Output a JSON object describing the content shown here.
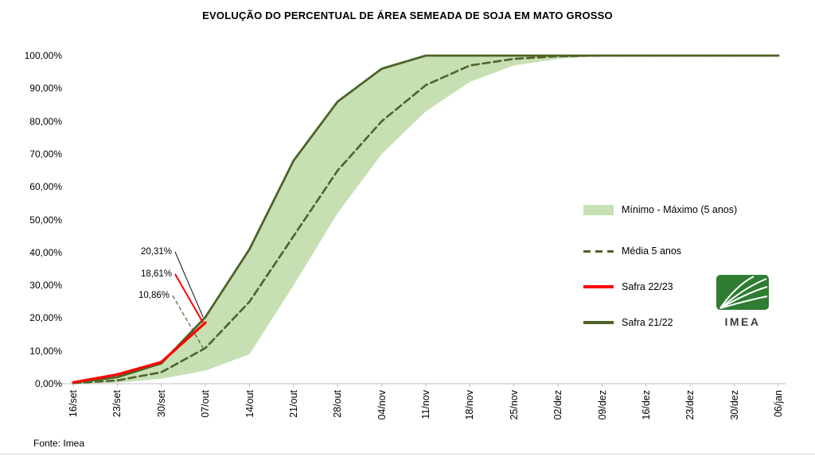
{
  "title": "EVOLUÇÃO DO PERCENTUAL DE ÁREA SEMEADA DE SOJA EM MATO GROSSO",
  "source": "Fonte: Imea",
  "logo": {
    "text": "IMEA"
  },
  "colors": {
    "band": "#c6e0b4",
    "olive": "#4f6228",
    "red": "#ff0000",
    "axis": "#bfbfbf",
    "text": "#000000",
    "logo_green": "#2e7d32",
    "logo_text": "#3d3d3d"
  },
  "legend": {
    "items": [
      {
        "label": "Mínimo - Máximo (5 anos)",
        "swatch": "band"
      },
      {
        "label": "Média 5 anos",
        "swatch": "dashed"
      },
      {
        "label": "Safra 22/23",
        "swatch": "red"
      },
      {
        "label": "Safra 21/22",
        "swatch": "olive"
      }
    ]
  },
  "chart_data": {
    "type": "area",
    "title": "EVOLUÇÃO DO PERCENTUAL DE ÁREA SEMEADA DE SOJA EM MATO GROSSO",
    "xlabel": "",
    "ylabel": "",
    "ylim": [
      0,
      100
    ],
    "grid": false,
    "legend_position": "right",
    "y_ticks": [
      {
        "value": 0,
        "label": "0,00%"
      },
      {
        "value": 10,
        "label": "10,00%"
      },
      {
        "value": 20,
        "label": "20,00%"
      },
      {
        "value": 30,
        "label": "30,00%"
      },
      {
        "value": 40,
        "label": "40,00%"
      },
      {
        "value": 50,
        "label": "50,00%"
      },
      {
        "value": 60,
        "label": "60,00%"
      },
      {
        "value": 70,
        "label": "70,00%"
      },
      {
        "value": 80,
        "label": "80,00%"
      },
      {
        "value": 90,
        "label": "90,00%"
      },
      {
        "value": 100,
        "label": "100,00%"
      }
    ],
    "categories": [
      "16/set",
      "23/set",
      "30/set",
      "07/out",
      "14/out",
      "21/out",
      "28/out",
      "04/nov",
      "11/nov",
      "18/nov",
      "25/nov",
      "02/dez",
      "09/dez",
      "16/dez",
      "23/dez",
      "30/dez",
      "06/jan"
    ],
    "series": [
      {
        "id": "minimo-maximo-5-anos",
        "name": "Mínimo - Máximo (5 anos)",
        "type": "band",
        "color": "#c6e0b4",
        "min": [
          0,
          0.3,
          1.5,
          4,
          9,
          30,
          52,
          70,
          83,
          92,
          97,
          99,
          100,
          100,
          100,
          100,
          100
        ],
        "max": [
          0.3,
          2,
          6.2,
          20.31,
          41,
          68,
          86,
          96,
          100,
          100,
          100,
          100,
          100,
          100,
          100,
          100,
          100
        ]
      },
      {
        "id": "media-5-anos",
        "name": "Média 5 anos",
        "type": "line",
        "style": "dashed",
        "dash": "9 5",
        "width": 2.6,
        "color": "#4f6228",
        "values": [
          0.2,
          1,
          3.5,
          10.86,
          25,
          45,
          65,
          80,
          91,
          97,
          99,
          99.8,
          100,
          100,
          100,
          100,
          100
        ]
      },
      {
        "id": "safra-21-22",
        "name": "Safra 21/22",
        "type": "line",
        "width": 2.8,
        "color": "#4f6228",
        "values": [
          0.3,
          2,
          6.2,
          20.31,
          41,
          68,
          86,
          96,
          100,
          100,
          100,
          100,
          100,
          100,
          100,
          100,
          100
        ]
      },
      {
        "id": "safra-22-23",
        "name": "Safra 22/23",
        "type": "line",
        "width": 3.2,
        "color": "#ff0000",
        "values": [
          0.4,
          2.8,
          6.6,
          18.61,
          null,
          null,
          null,
          null,
          null,
          null,
          null,
          null,
          null,
          null,
          null,
          null,
          null
        ]
      }
    ],
    "annotations": [
      {
        "text": "20,31%",
        "series_id": "safra-21-22",
        "category": "07/out",
        "value": 20.31,
        "line_color": "#333333",
        "dashed": false,
        "line_width": 1.2
      },
      {
        "text": "18,61%",
        "series_id": "safra-22-23",
        "category": "07/out",
        "value": 18.61,
        "line_color": "#ff0000",
        "dashed": false,
        "line_width": 2
      },
      {
        "text": "10,86%",
        "series_id": "media-5-anos",
        "category": "07/out",
        "value": 10.86,
        "line_color": "#4f6228",
        "dashed": true,
        "line_width": 1.2
      }
    ]
  }
}
